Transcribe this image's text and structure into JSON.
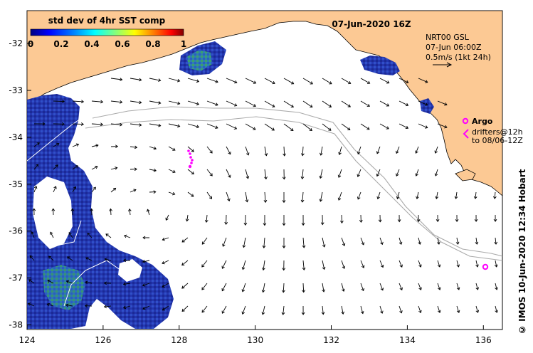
{
  "map": {
    "date_title": "07-Jun-2020 16Z",
    "colorbar": {
      "label": "std dev of 4hr SST comp",
      "ticks": [
        "0",
        "0.2",
        "0.4",
        "0.6",
        "0.8",
        "1"
      ],
      "range": [
        0,
        1
      ],
      "palette": [
        "#000080",
        "#0000ff",
        "#0080ff",
        "#00ffff",
        "#80ff80",
        "#ffff00",
        "#ff8000",
        "#ff0000",
        "#800000"
      ]
    },
    "model_info": {
      "line1": "NRT00 GSL",
      "line2": "07-Jun 06:00Z",
      "line3": "0.5m/s (1kt 24h)"
    },
    "argo": {
      "label": "Argo",
      "line2": "drifters@12h",
      "line3": "to 08/06-12Z"
    },
    "credit": "© IMOS 10-Jun-2020 12:34 Hobart",
    "x_ticks": [
      "124",
      "126",
      "128",
      "130",
      "132",
      "134",
      "136"
    ],
    "y_ticks": [
      "-32",
      "-33",
      "-34",
      "-35",
      "-36",
      "-37",
      "-38"
    ],
    "lon_range": [
      124,
      136.5
    ],
    "lat_range": [
      -38.1,
      -31.3
    ],
    "colors": {
      "land": "#fcc994",
      "ocean": "#ffffff",
      "sst_low": "#1a2aa8",
      "sst_mid": "#2a9a5a",
      "argo": "#ff00ff",
      "isobath": "#aaaaaa"
    }
  }
}
